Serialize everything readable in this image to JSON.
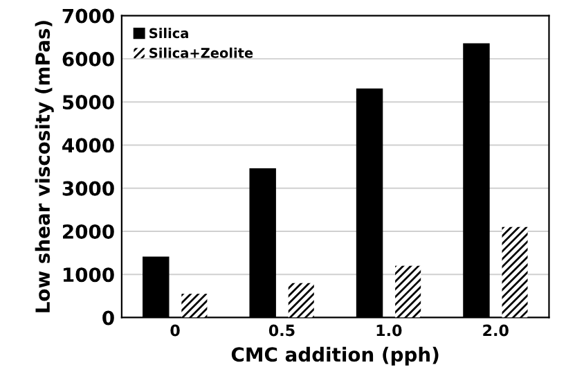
{
  "chart_data": {
    "type": "bar",
    "xlabel": "CMC addition (pph)",
    "ylabel": "Low shear viscosity (mPas)",
    "categories": [
      "0",
      "0.5",
      "1.0",
      "2.0"
    ],
    "series": [
      {
        "name": "Silica",
        "color": "#000000",
        "values": [
          1400,
          3450,
          5300,
          6350
        ]
      },
      {
        "name": "Silica+Zeolite",
        "color": "#ffffff",
        "values": [
          550,
          800,
          1200,
          2100
        ]
      }
    ],
    "ylim": [
      0,
      7000
    ],
    "yticks": [
      0,
      1000,
      2000,
      3000,
      4000,
      5000,
      6000,
      7000
    ],
    "grid": "y",
    "legend": "top left"
  }
}
